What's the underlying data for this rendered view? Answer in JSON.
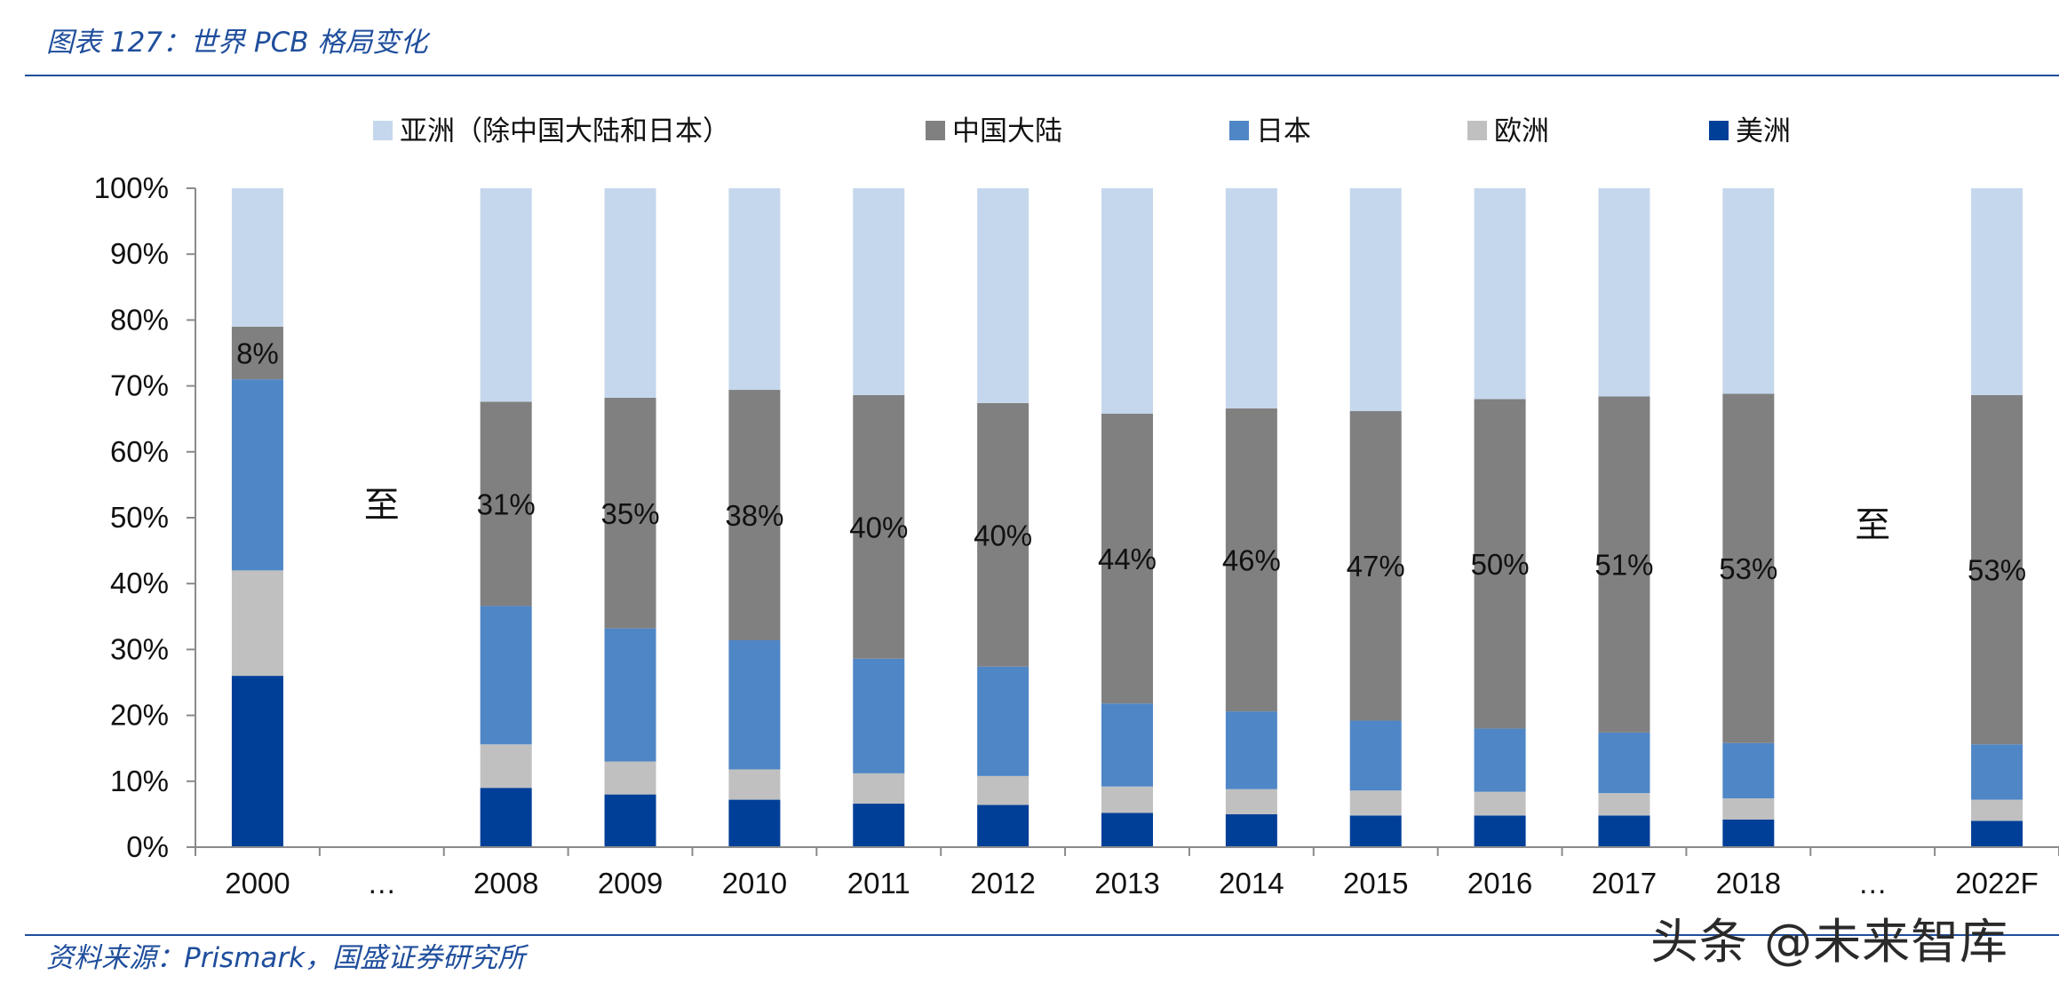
{
  "header": {
    "title": "图表 127：世界 PCB 格局变化"
  },
  "footer": {
    "source": "资料来源：Prismark，国盛证券研究所",
    "watermark": "头条 @未来智库"
  },
  "chart_data": {
    "type": "bar",
    "stacked": true,
    "title": "图表 127：世界 PCB 格局变化",
    "xlabel": "",
    "ylabel": "",
    "ylim": [
      0,
      100
    ],
    "y_ticks": [
      "0%",
      "10%",
      "20%",
      "30%",
      "40%",
      "50%",
      "60%",
      "70%",
      "80%",
      "90%",
      "100%"
    ],
    "categories": [
      "2000",
      "…",
      "2008",
      "2009",
      "2010",
      "2011",
      "2012",
      "2013",
      "2014",
      "2015",
      "2016",
      "2017",
      "2018",
      "…",
      "2022F"
    ],
    "gap_labels": [
      "至",
      "至"
    ],
    "series": [
      {
        "name": "美洲",
        "color": "#003f98",
        "values": [
          26,
          null,
          9,
          8,
          7.2,
          6.6,
          6.4,
          5.2,
          5,
          4.8,
          4.8,
          4.8,
          4.2,
          null,
          4
        ]
      },
      {
        "name": "欧洲",
        "color": "#c0c0c0",
        "values": [
          16,
          null,
          6.6,
          5,
          4.6,
          4.6,
          4.4,
          4,
          3.8,
          3.8,
          3.6,
          3.4,
          3.2,
          null,
          3.2
        ]
      },
      {
        "name": "日本",
        "color": "#4f86c6",
        "values": [
          29,
          null,
          21,
          20.2,
          19.6,
          17.4,
          16.6,
          12.6,
          11.8,
          10.6,
          9.6,
          9.2,
          8.4,
          null,
          8.4
        ]
      },
      {
        "name": "中国大陆",
        "color": "#808080",
        "values": [
          8,
          null,
          31,
          35,
          38,
          40,
          40,
          44,
          46,
          47,
          50,
          51,
          53,
          null,
          53
        ]
      },
      {
        "name": "亚洲（除中国大陆和日本）",
        "color": "#c5d7ec",
        "values": [
          21,
          null,
          32.4,
          31.8,
          30.6,
          31.4,
          32.6,
          34.2,
          33.4,
          33.8,
          32,
          31.6,
          31.2,
          null,
          31.4
        ]
      }
    ],
    "data_labels": [
      "8%",
      null,
      "31%",
      "35%",
      "38%",
      "40%",
      "40%",
      "44%",
      "46%",
      "47%",
      "50%",
      "51%",
      "53%",
      null,
      "53%"
    ],
    "legend_order": [
      "亚洲（除中国大陆和日本）",
      "中国大陆",
      "日本",
      "欧洲",
      "美洲"
    ],
    "legend_position": "top"
  }
}
